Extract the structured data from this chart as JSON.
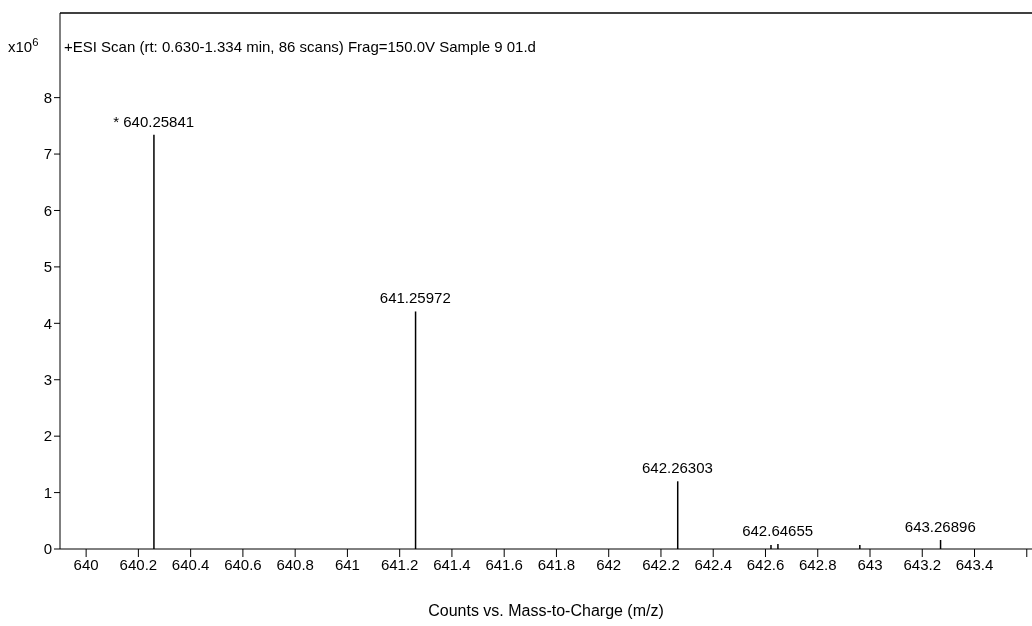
{
  "chart_data": {
    "type": "bar",
    "title": "+ESI Scan (rt: 0.630-1.334 min, 86 scans) Frag=150.0V Sample 9 01.d",
    "xlabel": "Counts vs. Mass-to-Charge (m/z)",
    "ylabel": "x10$^{6}$",
    "x": [
      640.25841,
      641.25972,
      642.26303,
      642.62,
      642.64655,
      642.96,
      643.26896
    ],
    "values": [
      7.34,
      4.21,
      1.2,
      0.07,
      0.09,
      0.07,
      0.16
    ],
    "annotations": [
      {
        "text": "* 640.25841",
        "x": 640.25841,
        "y": 7.34
      },
      {
        "text": "641.25972",
        "x": 641.25972,
        "y": 4.21
      },
      {
        "text": "642.26303",
        "x": 642.26303,
        "y": 1.2
      },
      {
        "text": "642.64655",
        "x": 642.64655,
        "y": 0.09
      },
      {
        "text": "643.26896",
        "x": 643.26896,
        "y": 0.16
      }
    ],
    "color": "#000000",
    "xlim": [
      639.9,
      643.62
    ],
    "ylim": [
      0,
      9.5
    ],
    "xticks": [
      640,
      640.2,
      640.4,
      640.6,
      640.8,
      641,
      641.2,
      641.4,
      641.6,
      641.8,
      642,
      642.2,
      642.4,
      642.6,
      642.8,
      643,
      643.2,
      643.4,
      {
        "value": 643.6,
        "label": null
      }
    ],
    "yticks": [
      0,
      1,
      2,
      3,
      4,
      5,
      6,
      7,
      8
    ],
    "grid": false,
    "legend": false
  }
}
